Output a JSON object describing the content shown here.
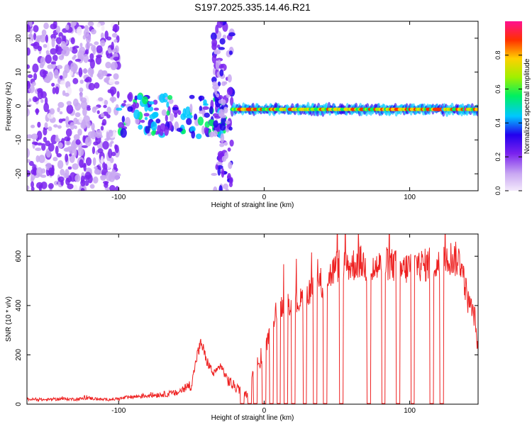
{
  "page_title": "S197.2025.335.14.46.R21",
  "chart_data": [
    {
      "type": "heatmap",
      "title": "S197.2025.335.14.46.R21",
      "xlabel": "Height of straight line (km)",
      "ylabel": "Frequency (Hz)",
      "xlim": [
        -163,
        147
      ],
      "ylim": [
        -25,
        25
      ],
      "xticks": [
        -100,
        0,
        100
      ],
      "xtick_labels": [
        "-100",
        "0",
        "100"
      ],
      "yticks": [
        -20,
        -10,
        0,
        10,
        20
      ],
      "ytick_labels": [
        "-20",
        "-10",
        "0",
        "10",
        "20"
      ],
      "colorbar": {
        "label": "Normalized spectral amplitude",
        "range": [
          0,
          1
        ],
        "ticks": [
          0.0,
          0.2,
          0.4,
          0.6,
          0.8
        ],
        "tick_labels": [
          "0.0",
          "0.2",
          "0.4",
          "0.6",
          "0.8"
        ],
        "colormap": [
          "#f4eafc",
          "#c9a8f2",
          "#7a22ee",
          "#2200ee",
          "#00c8ff",
          "#00f060",
          "#a0f000",
          "#ffd000",
          "#ff3000",
          "#ff1090"
        ]
      },
      "zones": [
        {
          "x": [
            -163,
            -100
          ],
          "freq_center": 0,
          "freq_spread": 25,
          "amplitude": 0.15,
          "description": "diffuse noise"
        },
        {
          "x": [
            -100,
            -25
          ],
          "freq_center": -3,
          "freq_spread": 6,
          "amplitude": 0.35,
          "description": "scattered signal"
        },
        {
          "x": [
            -35,
            -22
          ],
          "freq_center": 0,
          "freq_spread": 25,
          "amplitude": 0.2,
          "description": "noise column"
        },
        {
          "x": [
            -22,
            147
          ],
          "freq_center": -1,
          "freq_spread": 1,
          "amplitude": 0.9,
          "description": "tone line"
        }
      ]
    },
    {
      "type": "line",
      "xlabel": "Height of straight line (km)",
      "ylabel": "SNR (10 * v/v)",
      "xlim": [
        -163,
        147
      ],
      "ylim": [
        0,
        690
      ],
      "xticks": [
        -100,
        0,
        100
      ],
      "xtick_labels": [
        "-100",
        "0",
        "100"
      ],
      "yticks": [
        0,
        200,
        400,
        600
      ],
      "ytick_labels": [
        "0",
        "200",
        "400",
        "600"
      ],
      "color": "#ee2222",
      "series": [
        {
          "name": "SNR",
          "x": [
            -163,
            -150,
            -140,
            -130,
            -120,
            -110,
            -100,
            -90,
            -80,
            -70,
            -60,
            -50,
            -46,
            -43,
            -40,
            -37,
            -35,
            -32,
            -30,
            -27,
            -25,
            -22,
            -18,
            -15,
            -12,
            -10,
            -8,
            -5,
            -3,
            -1,
            2,
            5,
            8,
            12,
            16,
            20,
            25,
            30,
            35,
            40,
            45,
            50,
            55,
            60,
            65,
            70,
            75,
            80,
            85,
            90,
            95,
            100,
            105,
            110,
            115,
            120,
            125,
            130,
            135,
            140,
            145,
            147
          ],
          "y": [
            20,
            18,
            22,
            20,
            25,
            18,
            22,
            30,
            35,
            40,
            45,
            80,
            200,
            250,
            180,
            150,
            120,
            140,
            160,
            120,
            100,
            80,
            60,
            50,
            40,
            90,
            120,
            180,
            150,
            200,
            250,
            300,
            380,
            400,
            420,
            400,
            420,
            450,
            500,
            480,
            520,
            560,
            570,
            560,
            580,
            560,
            550,
            560,
            570,
            560,
            540,
            560,
            570,
            560,
            580,
            560,
            600,
            590,
            580,
            420,
            350,
            200
          ],
          "dropouts": [
            -15,
            -10,
            -6,
            0,
            5,
            10,
            15,
            20,
            28,
            35,
            42,
            53,
            72,
            82,
            92,
            102,
            115,
            122
          ]
        }
      ]
    }
  ]
}
